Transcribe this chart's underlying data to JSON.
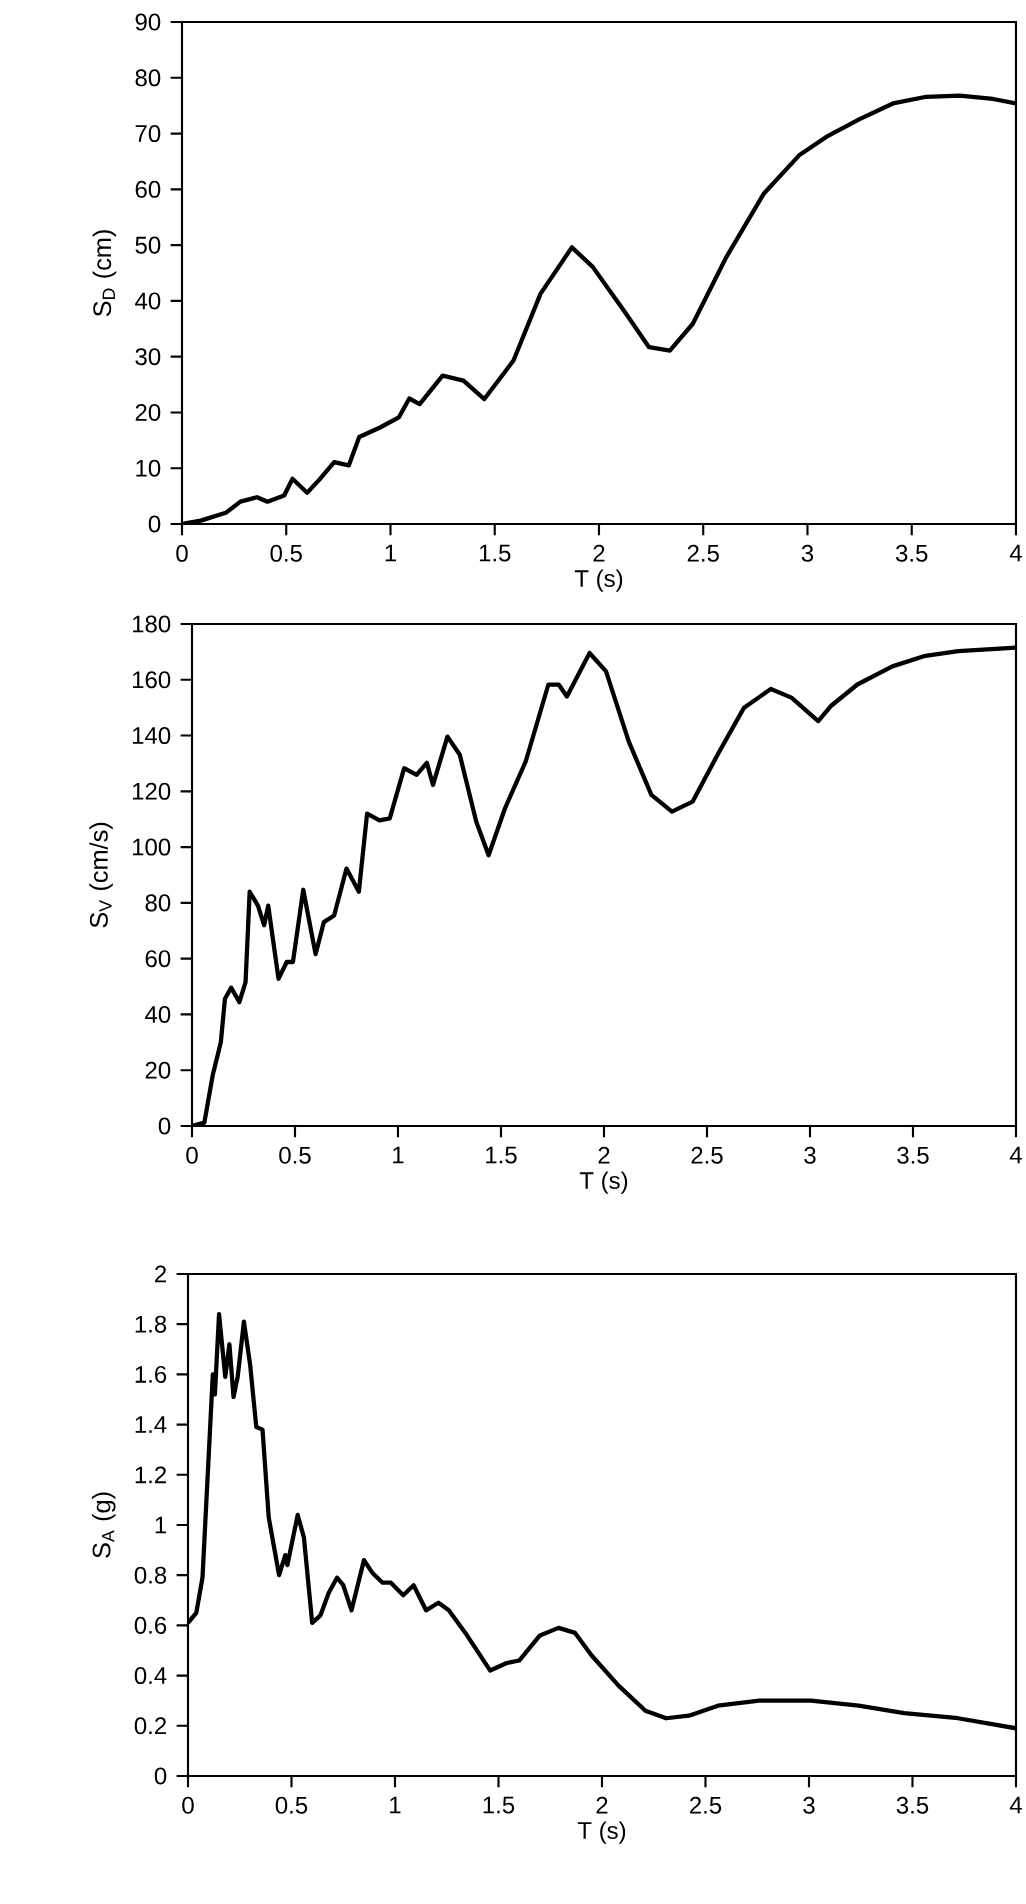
{
  "chart_data": [
    {
      "type": "line",
      "xlabel": "T (s)",
      "ylabel": "S$_{D}$ (cm)",
      "color": "#000000",
      "x": [
        0,
        0.09,
        0.21,
        0.28,
        0.36,
        0.41,
        0.49,
        0.53,
        0.6,
        0.66,
        0.73,
        0.8,
        0.85,
        0.95,
        1.04,
        1.09,
        1.14,
        1.25,
        1.35,
        1.45,
        1.59,
        1.72,
        1.87,
        1.97,
        2.13,
        2.24,
        2.34,
        2.45,
        2.61,
        2.79,
        2.96,
        3.09,
        3.25,
        3.41,
        3.57,
        3.73,
        3.89,
        4
      ],
      "values": [
        0,
        0.6,
        2,
        4,
        4.8,
        4,
        5.1,
        8.1,
        5.6,
        8,
        11.1,
        10.5,
        15.6,
        17.3,
        19.1,
        22.5,
        21.5,
        26.6,
        25.7,
        22.4,
        29.3,
        41.3,
        49.6,
        46.1,
        37.7,
        31.7,
        31.1,
        35.9,
        47.8,
        59.2,
        66.1,
        69.4,
        72.6,
        75.4,
        76.6,
        76.8,
        76.2,
        75.4
      ],
      "xlim": [
        0,
        4
      ],
      "ylim": [
        0,
        90
      ],
      "xticks": [
        0,
        0.5,
        1,
        1.5,
        2,
        2.5,
        3,
        3.5,
        4
      ],
      "yticks": [
        0,
        10,
        20,
        30,
        40,
        50,
        60,
        70,
        80,
        90
      ]
    },
    {
      "type": "line",
      "xlabel": "T (s)",
      "ylabel": "S$_{V}$ (cm/s)",
      "color": "#000000",
      "x": [
        0,
        0.06,
        0.1,
        0.14,
        0.16,
        0.19,
        0.23,
        0.26,
        0.28,
        0.32,
        0.35,
        0.37,
        0.42,
        0.46,
        0.49,
        0.54,
        0.6,
        0.64,
        0.69,
        0.75,
        0.81,
        0.85,
        0.91,
        0.96,
        1.03,
        1.09,
        1.14,
        1.17,
        1.24,
        1.3,
        1.38,
        1.44,
        1.52,
        1.62,
        1.73,
        1.78,
        1.82,
        1.93,
        2.01,
        2.12,
        2.23,
        2.33,
        2.43,
        2.56,
        2.68,
        2.81,
        2.91,
        3.04,
        3.1,
        3.23,
        3.4,
        3.56,
        3.72,
        4
      ],
      "values": [
        0,
        1.2,
        18,
        30,
        45.6,
        49.6,
        44.4,
        51.6,
        84,
        79,
        72,
        79,
        52.8,
        58.8,
        58.8,
        84.7,
        61.6,
        73.1,
        75.5,
        92.3,
        84,
        112,
        109.6,
        110.3,
        128.3,
        125.9,
        130.2,
        122.3,
        139.6,
        133.1,
        109.1,
        97.1,
        114,
        130.7,
        158.3,
        158.3,
        154,
        169.6,
        163,
        137.9,
        118.7,
        112.7,
        116.3,
        134.3,
        150,
        156.7,
        153.6,
        145.2,
        150.5,
        158.3,
        164.8,
        168.6,
        170.3,
        171.5
      ],
      "xlim": [
        0,
        4
      ],
      "ylim": [
        0,
        180
      ],
      "xticks": [
        0,
        0.5,
        1,
        1.5,
        2,
        2.5,
        3,
        3.5,
        4
      ],
      "yticks": [
        0,
        20,
        40,
        60,
        80,
        100,
        120,
        140,
        160,
        180
      ]
    },
    {
      "type": "line",
      "xlabel": "T (s)",
      "ylabel": "S$_{A}$  (g)",
      "color": "#000000",
      "x": [
        0,
        0.04,
        0.07,
        0.12,
        0.13,
        0.15,
        0.18,
        0.2,
        0.22,
        0.24,
        0.27,
        0.3,
        0.33,
        0.36,
        0.39,
        0.44,
        0.47,
        0.48,
        0.53,
        0.56,
        0.6,
        0.64,
        0.68,
        0.72,
        0.75,
        0.79,
        0.85,
        0.89,
        0.94,
        0.98,
        1.04,
        1.09,
        1.15,
        1.21,
        1.26,
        1.34,
        1.46,
        1.54,
        1.6,
        1.7,
        1.79,
        1.87,
        1.95,
        2.08,
        2.21,
        2.31,
        2.42,
        2.56,
        2.76,
        3.01,
        3.24,
        3.46,
        3.72,
        4
      ],
      "values": [
        0.61,
        0.65,
        0.79,
        1.6,
        1.52,
        1.84,
        1.59,
        1.72,
        1.51,
        1.59,
        1.81,
        1.64,
        1.39,
        1.38,
        1.03,
        0.8,
        0.88,
        0.84,
        1.04,
        0.95,
        0.61,
        0.64,
        0.73,
        0.79,
        0.76,
        0.66,
        0.86,
        0.81,
        0.77,
        0.77,
        0.72,
        0.76,
        0.66,
        0.69,
        0.66,
        0.57,
        0.42,
        0.45,
        0.46,
        0.56,
        0.59,
        0.57,
        0.48,
        0.36,
        0.26,
        0.23,
        0.24,
        0.28,
        0.3,
        0.3,
        0.28,
        0.25,
        0.23,
        0.19
      ],
      "xlim": [
        0,
        4
      ],
      "ylim": [
        0,
        2
      ],
      "xticks": [
        0,
        0.5,
        1,
        1.5,
        2,
        2.5,
        3,
        3.5,
        4
      ],
      "yticks": [
        0,
        0.2,
        0.4,
        0.6,
        0.8,
        1,
        1.2,
        1.4,
        1.6,
        1.8,
        2
      ]
    }
  ]
}
